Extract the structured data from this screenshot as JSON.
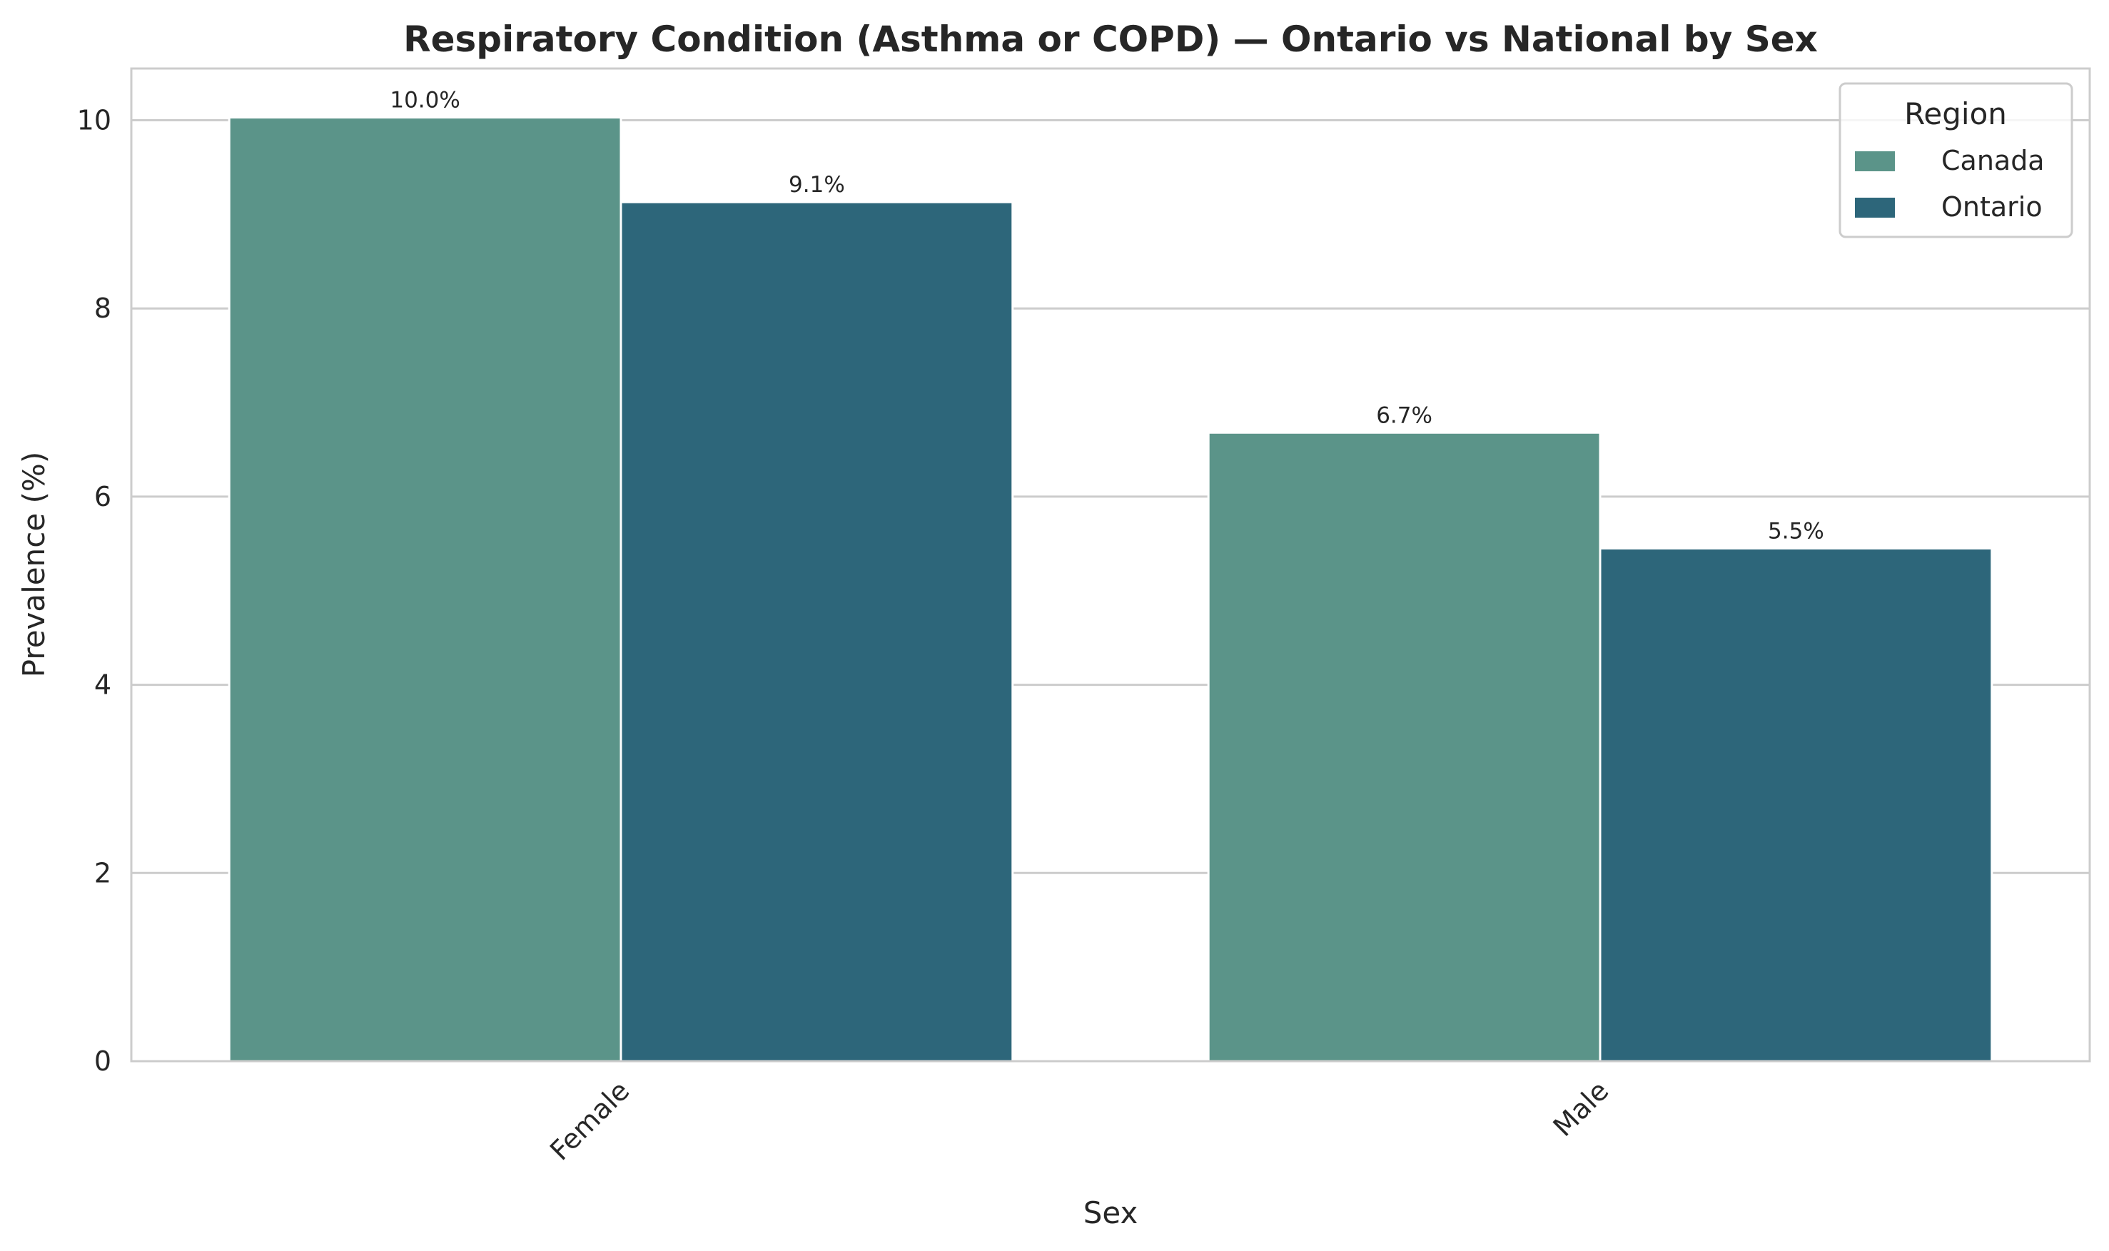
{
  "chart_data": {
    "type": "bar",
    "title": "Respiratory Condition (Asthma or COPD) — Ontario vs National by Sex",
    "xlabel": "Sex",
    "ylabel": "Prevalence (%)",
    "categories": [
      "Female",
      "Male"
    ],
    "series": [
      {
        "name": "Canada",
        "values": [
          10.03,
          6.68
        ],
        "labels": [
          "10.0%",
          "6.7%"
        ],
        "color": "#5b9489"
      },
      {
        "name": "Ontario",
        "values": [
          9.13,
          5.45
        ],
        "labels": [
          "9.1%",
          "5.5%"
        ],
        "color": "#2d667a"
      }
    ],
    "ylim": [
      0,
      10.55
    ],
    "yticks": [
      0,
      2,
      4,
      6,
      8,
      10
    ],
    "ytick_labels": [
      "0",
      "2",
      "4",
      "6",
      "8",
      "10"
    ],
    "grid": true,
    "legend": {
      "title": "Region",
      "placement": "top-right"
    }
  }
}
